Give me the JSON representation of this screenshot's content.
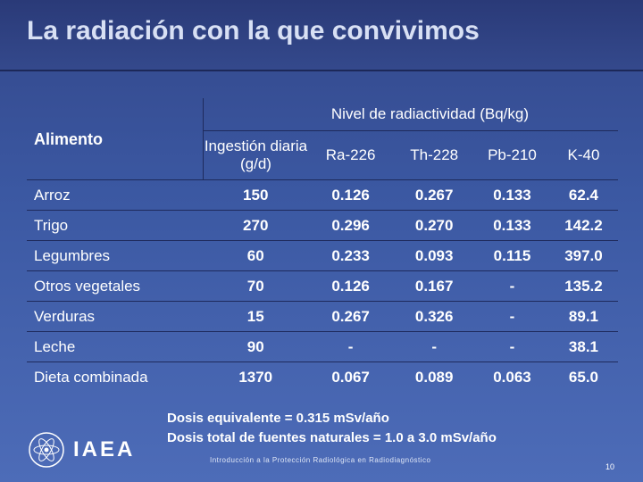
{
  "header": {
    "title": "La radiación con la que convivimos"
  },
  "table": {
    "group_header": "Nivel de radiactividad (Bq/kg)",
    "columns": [
      "Alimento",
      "Ingestión diaria (g/d)",
      "Ra-226",
      "Th-228",
      "Pb-210",
      "K-40"
    ],
    "rows": [
      [
        "Arroz",
        "150",
        "0.126",
        "0.267",
        "0.133",
        "62.4"
      ],
      [
        "Trigo",
        "270",
        "0.296",
        "0.270",
        "0.133",
        "142.2"
      ],
      [
        "Legumbres",
        "60",
        "0.233",
        "0.093",
        "0.115",
        "397.0"
      ],
      [
        "Otros vegetales",
        "70",
        "0.126",
        "0.167",
        "-",
        "135.2"
      ],
      [
        "Verduras",
        "15",
        "0.267",
        "0.326",
        "-",
        "89.1"
      ],
      [
        "Leche",
        "90",
        "-",
        "-",
        "-",
        "38.1"
      ],
      [
        "Dieta combinada",
        "1370",
        "0.067",
        "0.089",
        "0.063",
        "65.0"
      ]
    ]
  },
  "notes": [
    "Dosis equivalente = 0.315 mSv/año",
    "Dosis total de fuentes naturales = 1.0 a 3.0 mSv/año"
  ],
  "footer": {
    "logo": "IAEA",
    "caption": "Introducción a la Protección Radiológica en Radiodiagnóstico",
    "page": "10"
  }
}
